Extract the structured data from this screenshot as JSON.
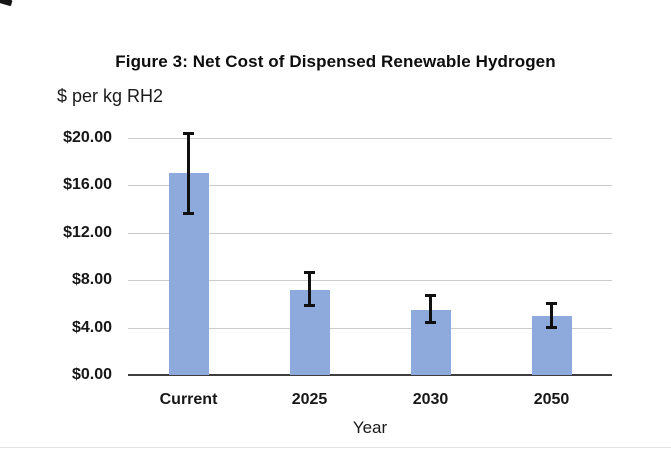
{
  "figure": {
    "title": "Figure 3: Net Cost of Dispensed Renewable Hydrogen",
    "y_axis_title": "$ per kg RH2",
    "x_axis_title": "Year"
  },
  "chart_data": {
    "type": "bar",
    "title": "Figure 3: Net Cost of Dispensed Renewable Hydrogen",
    "xlabel": "Year",
    "ylabel": "$ per kg RH2",
    "categories": [
      "Current",
      "2025",
      "2030",
      "2050"
    ],
    "values": [
      17.0,
      7.2,
      5.5,
      5.0
    ],
    "error_low": [
      13.6,
      5.8,
      4.4,
      4.0
    ],
    "error_high": [
      20.4,
      8.7,
      6.7,
      6.1
    ],
    "ylim": [
      0,
      20
    ],
    "yticks": [
      {
        "label": "$0.00",
        "value": 0
      },
      {
        "label": "$4.00",
        "value": 4
      },
      {
        "label": "$8.00",
        "value": 8
      },
      {
        "label": "$12.00",
        "value": 12
      },
      {
        "label": "$16.00",
        "value": 16
      },
      {
        "label": "$20.00",
        "value": 20
      }
    ],
    "grid": true,
    "legend": false,
    "bar_color": "#8ea9db",
    "error_bar_color": "#101010",
    "gridline_color": "#cccccc",
    "axis_line_color": "#3d3d3d"
  }
}
